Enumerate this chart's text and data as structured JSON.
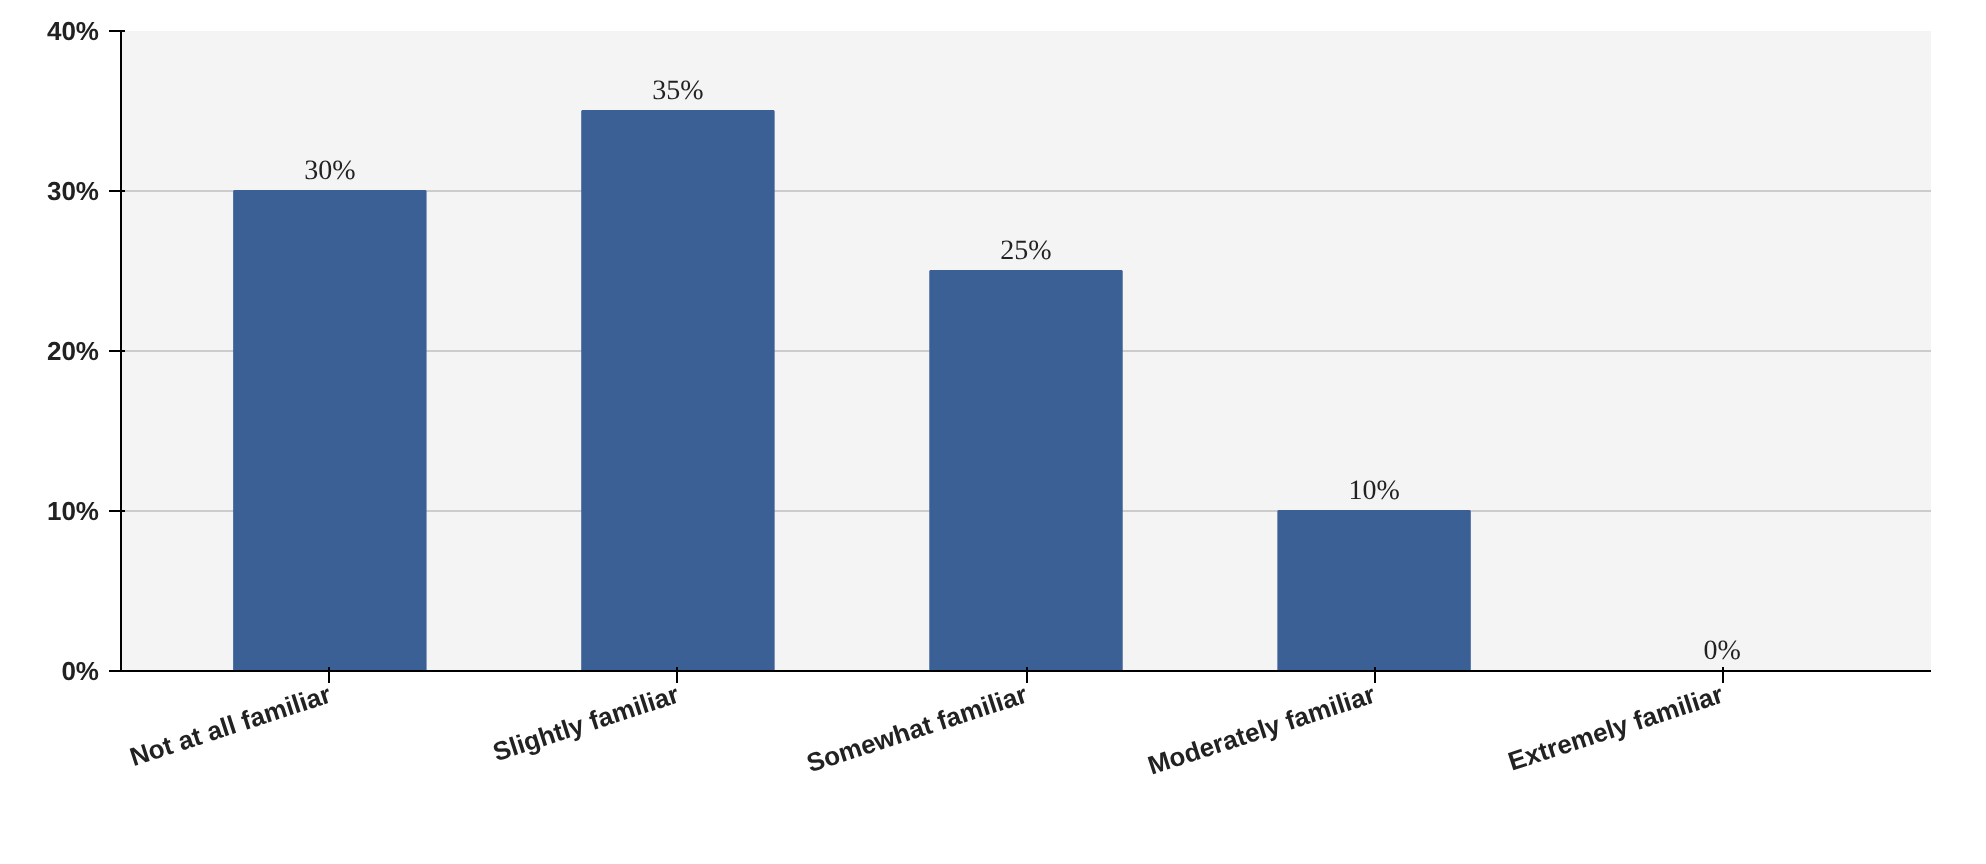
{
  "chart_data": {
    "type": "bar",
    "categories": [
      "Not at all familiar",
      "Slightly familiar",
      "Somewhat familiar",
      "Moderately familiar",
      "Extremely familiar"
    ],
    "values": [
      30,
      35,
      25,
      10,
      0
    ],
    "value_labels": [
      "30%",
      "35%",
      "25%",
      "10%",
      "0%"
    ],
    "color": "#3a6096",
    "ylim": [
      0,
      40
    ],
    "yticks": [
      {
        "value": 0,
        "label": "0%"
      },
      {
        "value": 10,
        "label": "10%"
      },
      {
        "value": 20,
        "label": "20%"
      },
      {
        "value": 30,
        "label": "30%"
      },
      {
        "value": 40,
        "label": "40%"
      }
    ],
    "grid": "y"
  }
}
